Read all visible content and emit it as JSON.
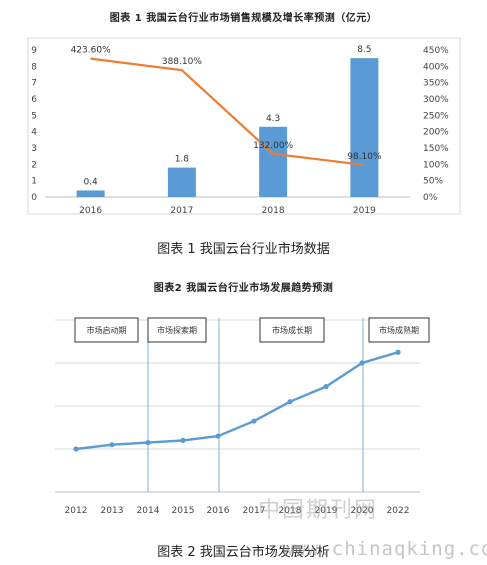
{
  "chart_data": [
    {
      "type": "bar",
      "title": "图表 1 我国云台行业市场销售规模及增长率预测（亿元）",
      "caption": "图表 1  我国云台行业市场数据",
      "categories": [
        "2016",
        "2017",
        "2018",
        "2019"
      ],
      "series": [
        {
          "type": "bar",
          "values": [
            0.4,
            1.8,
            4.3,
            8.5
          ],
          "labels": [
            "0.4",
            "1.8",
            "4.3",
            "8.5"
          ],
          "color": "#5B9BD5"
        },
        {
          "type": "line",
          "axis": "right",
          "values": [
            423.6,
            388.1,
            132.0,
            98.1
          ],
          "labels": [
            "423.60%",
            "388.10%",
            "132.00%",
            "98.10%"
          ],
          "color": "#ED7D31"
        }
      ],
      "ylim": [
        0,
        9
      ],
      "yticks": [
        "0",
        "1",
        "2",
        "3",
        "4",
        "5",
        "6",
        "7",
        "8",
        "9"
      ],
      "y2lim": [
        0,
        450
      ],
      "y2ticks": [
        "0%",
        "50%",
        "100%",
        "150%",
        "200%",
        "250%",
        "300%",
        "350%",
        "400%",
        "450%"
      ],
      "grid": false
    },
    {
      "type": "line",
      "title": "图表2 我国云台行业市场发展趋势预测",
      "caption": "图表 2  我国云台市场发展分析",
      "categories": [
        "2012",
        "2013",
        "2014",
        "2015",
        "2016",
        "2017",
        "2018",
        "2019",
        "2020",
        "2022"
      ],
      "values": [
        1.0,
        1.1,
        1.15,
        1.2,
        1.3,
        1.65,
        2.1,
        2.45,
        3.0,
        3.25
      ],
      "ylim": [
        0,
        4
      ],
      "color": "#5B9BD5",
      "grid": true,
      "phases": [
        "市场启动期",
        "市场探索期",
        "市场成长期",
        "市场成熟期"
      ]
    }
  ],
  "watermark": {
    "cn": "中国期刊网",
    "url": "www.chinaqking.com"
  }
}
